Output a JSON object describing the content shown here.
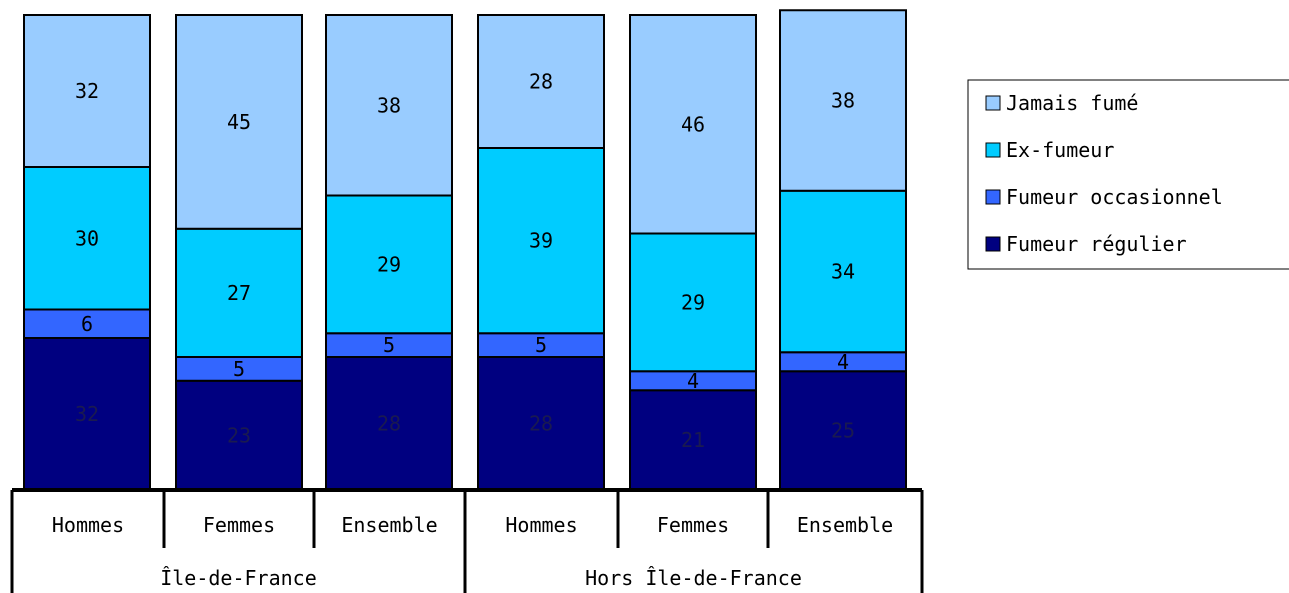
{
  "chart_data": {
    "type": "bar",
    "stacked": true,
    "normalized_percent": true,
    "ylim": [
      0,
      100
    ],
    "grid": false,
    "legend_position": "right",
    "categories": [
      {
        "label": "Hommes",
        "group": "Île-de-France"
      },
      {
        "label": "Femmes",
        "group": "Île-de-France"
      },
      {
        "label": "Ensemble",
        "group": "Île-de-France"
      },
      {
        "label": "Hommes",
        "group": "Hors Île-de-France"
      },
      {
        "label": "Femmes",
        "group": "Hors Île-de-France"
      },
      {
        "label": "Ensemble",
        "group": "Hors Île-de-France"
      }
    ],
    "groups": [
      "Île-de-France",
      "Hors Île-de-France"
    ],
    "series": [
      {
        "name": "Fumeur régulier",
        "color": "#000080",
        "label_color": "#1a1a50",
        "values": [
          32,
          23,
          28,
          28,
          21,
          25
        ]
      },
      {
        "name": "Fumeur occasionnel",
        "color": "#3366ff",
        "label_color": "#000000",
        "values": [
          6,
          5,
          5,
          5,
          4,
          4
        ]
      },
      {
        "name": "Ex-fumeur",
        "color": "#00ccff",
        "label_color": "#000000",
        "values": [
          30,
          27,
          29,
          39,
          29,
          34
        ]
      },
      {
        "name": "Jamais fumé",
        "color": "#99ccff",
        "label_color": "#000000",
        "values": [
          32,
          45,
          38,
          28,
          46,
          38
        ]
      }
    ],
    "legend_order": [
      "Jamais fumé",
      "Ex-fumeur",
      "Fumeur occasionnel",
      "Fumeur régulier"
    ]
  }
}
